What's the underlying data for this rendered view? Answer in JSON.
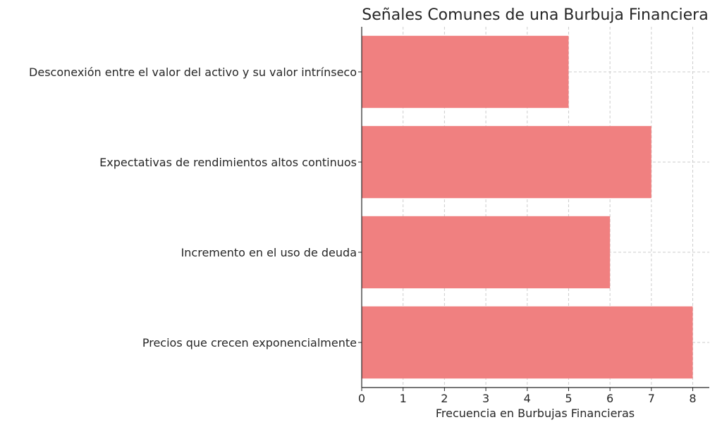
{
  "chart_data": {
    "type": "bar",
    "orientation": "horizontal",
    "title": "Señales Comunes de una Burbuja Financiera",
    "xlabel": "Frecuencia en Burbujas Financieras",
    "ylabel": "",
    "categories": [
      "Desconexión entre el valor del activo y su valor intrínseco",
      "Expectativas de rendimientos altos continuos",
      "Incremento en el uso de deuda",
      "Precios que crecen exponencialmente"
    ],
    "values": [
      5,
      7,
      6,
      8
    ],
    "xlim": [
      0,
      8.4
    ],
    "xticks": [
      0,
      1,
      2,
      3,
      4,
      5,
      6,
      7,
      8
    ],
    "grid": true,
    "bar_color": "#f08080",
    "legend": "none"
  }
}
